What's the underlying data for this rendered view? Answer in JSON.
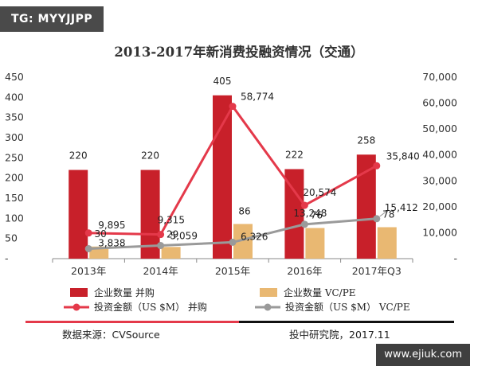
{
  "watermark_top": "TG: MYYJJPP",
  "watermark_bottom": "www.ejiuk.com",
  "footer": {
    "source": "数据来源：CVSource",
    "credit": "投中研究院，2017.11"
  },
  "colors": {
    "ma_bar": "#c8202a",
    "vc_bar": "#e9b872",
    "ma_line": "#e4394a",
    "vc_line": "#9a9a9a",
    "rule_red": "#e4394a",
    "rule_black": "#111111"
  },
  "chart_data": {
    "type": "bar",
    "title": "2013-2017年新消费投融资情况（交通）",
    "categories": [
      "2013年",
      "2014年",
      "2015年",
      "2016年",
      "2017年Q3"
    ],
    "ylim_left": [
      0,
      450
    ],
    "yticks_left": [
      0,
      50,
      100,
      150,
      200,
      250,
      300,
      350,
      400,
      450
    ],
    "ytick_labels_left": [
      "-",
      "50",
      "100",
      "150",
      "200",
      "250",
      "300",
      "350",
      "400",
      "450"
    ],
    "ylim_right": [
      0,
      70000
    ],
    "yticks_right": [
      0,
      10000,
      20000,
      30000,
      40000,
      50000,
      60000,
      70000
    ],
    "ytick_labels_right": [
      "-",
      "10,000",
      "20,000",
      "30,000",
      "40,000",
      "50,000",
      "60,000",
      "70,000"
    ],
    "grid": false,
    "legend_position": "bottom",
    "series": [
      {
        "name": "企业数量 并购",
        "kind": "bar",
        "axis": "left",
        "values": [
          220,
          220,
          405,
          222,
          258
        ],
        "labels": [
          "220",
          "220",
          "405",
          "222",
          "258"
        ]
      },
      {
        "name": "企业数量 VC/PE",
        "kind": "bar",
        "axis": "left",
        "values": [
          30,
          29,
          86,
          76,
          78
        ],
        "labels": [
          "30",
          "29",
          "86",
          "76",
          "78"
        ]
      },
      {
        "name": "投资金额（US $M） 并购",
        "kind": "line",
        "axis": "right",
        "values": [
          9895,
          9315,
          58774,
          20574,
          35840
        ],
        "labels": [
          "9,895",
          "9,315",
          "58,774",
          "20,574",
          "35,840"
        ]
      },
      {
        "name": "投资金额（US $M） VC/PE",
        "kind": "line",
        "axis": "right",
        "values": [
          3838,
          5059,
          6326,
          13248,
          15412
        ],
        "labels": [
          "3,838",
          "5,059",
          "6,326",
          "13,248",
          "15,412"
        ]
      }
    ]
  }
}
